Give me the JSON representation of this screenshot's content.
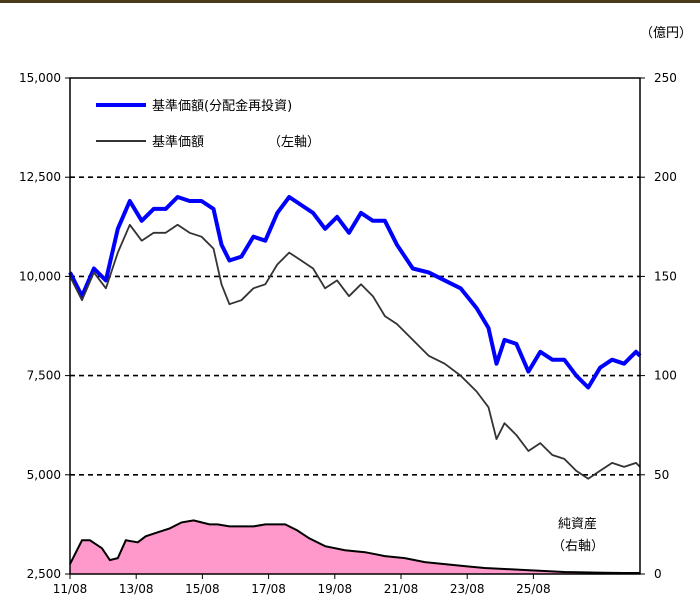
{
  "chart_data": {
    "type": "line",
    "unit_right": "（億円）",
    "legend": [
      {
        "label": "基準価額(分配金再投資)",
        "color": "#0000ff"
      },
      {
        "label": "基準価額",
        "color": "#333333"
      }
    ],
    "left_axis_note": "（左軸）",
    "right_axis_note": [
      "純資産",
      "（右軸）"
    ],
    "x_tick_labels": [
      "11/08",
      "13/08",
      "15/08",
      "17/08",
      "19/08",
      "21/08",
      "23/08",
      "25/08"
    ],
    "y_left": {
      "ticks": [
        "2,500",
        "5,000",
        "7,500",
        "10,000",
        "12,500",
        "15,000"
      ],
      "ylim": [
        2500,
        15000
      ]
    },
    "y_right": {
      "ticks": [
        "0",
        "50",
        "100",
        "150",
        "200",
        "250"
      ],
      "ylim": [
        0,
        250
      ]
    },
    "grid": "horizontal dashed at 5,000 / 7,500 / 10,000 / 12,500",
    "xlim": [
      2011.6,
      2025.9
    ],
    "series": [
      {
        "name": "基準価額(分配金再投資)",
        "axis": "left",
        "color": "#0000ff",
        "x": [
          2011.6,
          2011.9,
          2012.2,
          2012.5,
          2012.8,
          2013.1,
          2013.4,
          2013.7,
          2014.0,
          2014.3,
          2014.6,
          2014.9,
          2015.2,
          2015.4,
          2015.6,
          2015.9,
          2016.2,
          2016.5,
          2016.8,
          2017.1,
          2017.4,
          2017.7,
          2018.0,
          2018.3,
          2018.6,
          2018.9,
          2019.2,
          2019.5,
          2019.8,
          2020.2,
          2020.6,
          2021.0,
          2021.4,
          2021.8,
          2022.1,
          2022.3,
          2022.5,
          2022.8,
          2023.1,
          2023.4,
          2023.7,
          2024.0,
          2024.3,
          2024.6,
          2024.9,
          2025.2,
          2025.5,
          2025.8,
          2025.9
        ],
        "values": [
          10100,
          9500,
          10200,
          9900,
          11200,
          11900,
          11400,
          11700,
          11700,
          12000,
          11900,
          11900,
          11700,
          10800,
          10400,
          10500,
          11000,
          10900,
          11600,
          12000,
          11800,
          11600,
          11200,
          11500,
          11100,
          11600,
          11400,
          11400,
          10800,
          10200,
          10100,
          9900,
          9700,
          9200,
          8700,
          7800,
          8400,
          8300,
          7600,
          8100,
          7900,
          7900,
          7500,
          7200,
          7700,
          7900,
          7800,
          8100,
          8000
        ]
      },
      {
        "name": "基準価額",
        "axis": "left",
        "color": "#333333",
        "x": [
          2011.6,
          2011.9,
          2012.2,
          2012.5,
          2012.8,
          2013.1,
          2013.4,
          2013.7,
          2014.0,
          2014.3,
          2014.6,
          2014.9,
          2015.2,
          2015.4,
          2015.6,
          2015.9,
          2016.2,
          2016.5,
          2016.8,
          2017.1,
          2017.4,
          2017.7,
          2018.0,
          2018.3,
          2018.6,
          2018.9,
          2019.2,
          2019.5,
          2019.8,
          2020.2,
          2020.6,
          2021.0,
          2021.4,
          2021.8,
          2022.1,
          2022.3,
          2022.5,
          2022.8,
          2023.1,
          2023.4,
          2023.7,
          2024.0,
          2024.3,
          2024.6,
          2024.9,
          2025.2,
          2025.5,
          2025.8,
          2025.9
        ],
        "values": [
          10000,
          9400,
          10100,
          9700,
          10600,
          11300,
          10900,
          11100,
          11100,
          11300,
          11100,
          11000,
          10700,
          9800,
          9300,
          9400,
          9700,
          9800,
          10300,
          10600,
          10400,
          10200,
          9700,
          9900,
          9500,
          9800,
          9500,
          9000,
          8800,
          8400,
          8000,
          7800,
          7500,
          7100,
          6700,
          5900,
          6300,
          6000,
          5600,
          5800,
          5500,
          5400,
          5100,
          4900,
          5100,
          5300,
          5200,
          5300,
          5200
        ]
      },
      {
        "name": "純資産",
        "axis": "right",
        "type": "area",
        "color": "#ff99cc",
        "x": [
          2011.6,
          2011.9,
          2012.1,
          2012.4,
          2012.6,
          2012.8,
          2013.0,
          2013.3,
          2013.5,
          2013.8,
          2014.1,
          2014.4,
          2014.7,
          2014.9,
          2015.1,
          2015.3,
          2015.6,
          2015.9,
          2016.2,
          2016.5,
          2016.8,
          2017.0,
          2017.3,
          2017.6,
          2018.0,
          2018.5,
          2019.0,
          2019.5,
          2020.0,
          2020.5,
          2021.0,
          2021.5,
          2022.0,
          2022.5,
          2023.0,
          2023.5,
          2024.0,
          2024.5,
          2025.0,
          2025.5,
          2025.9
        ],
        "values": [
          5,
          17,
          17,
          13,
          7,
          8,
          17,
          16,
          19,
          21,
          23,
          26,
          27,
          26,
          25,
          25,
          24,
          24,
          24,
          25,
          25,
          25,
          22,
          18,
          14,
          12,
          11,
          9,
          8,
          6,
          5,
          4,
          3,
          2.5,
          2,
          1.5,
          1,
          0.8,
          0.6,
          0.5,
          0.5
        ]
      }
    ]
  }
}
